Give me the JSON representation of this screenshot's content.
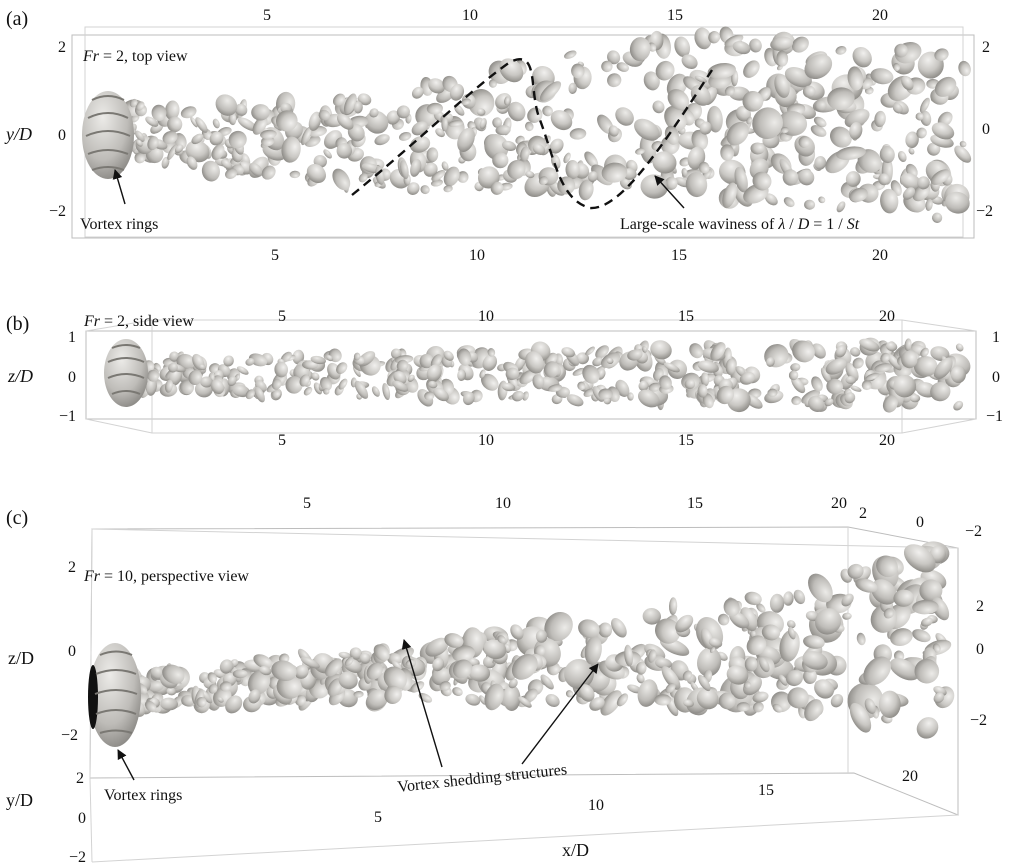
{
  "panels": [
    {
      "label": "(a)",
      "title": "Fr = 2, top view",
      "title_var": "Fr",
      "title_rest": " = 2, top view",
      "axis_label": "y/D",
      "x_ticks_top": [
        "5",
        "10",
        "15",
        "20"
      ],
      "x_ticks_bottom": [
        "5",
        "10",
        "15",
        "20"
      ],
      "y_ticks_left": [
        "2",
        "0",
        "−2"
      ],
      "y_ticks_right": [
        "2",
        "0",
        "−2"
      ],
      "annotations": [
        "Vortex rings",
        "Large-scale waviness of λ / D = 1 / St"
      ]
    },
    {
      "label": "(b)",
      "title": "Fr = 2, side view",
      "title_var": "Fr",
      "title_rest": " = 2, side view",
      "axis_label": "z/D",
      "x_ticks_top": [
        "5",
        "10",
        "15",
        "20"
      ],
      "x_ticks_bottom": [
        "5",
        "10",
        "15",
        "20"
      ],
      "y_ticks_left": [
        "1",
        "0",
        "−1"
      ],
      "y_ticks_right": [
        "1",
        "0",
        "−1"
      ]
    },
    {
      "label": "(c)",
      "title": "Fr = 10, perspective view",
      "title_var": "Fr",
      "title_rest": " = 10, perspective view",
      "z_label": "z/D",
      "y_label": "y/D",
      "x_label": "x/D",
      "x_ticks_top": [
        "5",
        "10",
        "15",
        "20"
      ],
      "x_ticks_bottom": [
        "5",
        "10",
        "15",
        "20"
      ],
      "z_ticks_left": [
        "2",
        "0",
        "−2"
      ],
      "z_ticks_right": [
        "2",
        "0",
        "−2"
      ],
      "y_ticks_left": [
        "2",
        "0",
        "−2"
      ],
      "y_ticks_right": [
        "2",
        "0",
        "−2"
      ],
      "annotations": [
        "Vortex rings",
        "Vortex shedding structures"
      ]
    }
  ],
  "colors": {
    "isosurface": "#c9c7c3",
    "isosurface_shadow": "#8e8c88",
    "frame": "#bdbdbd",
    "wave_line": "#111111"
  }
}
